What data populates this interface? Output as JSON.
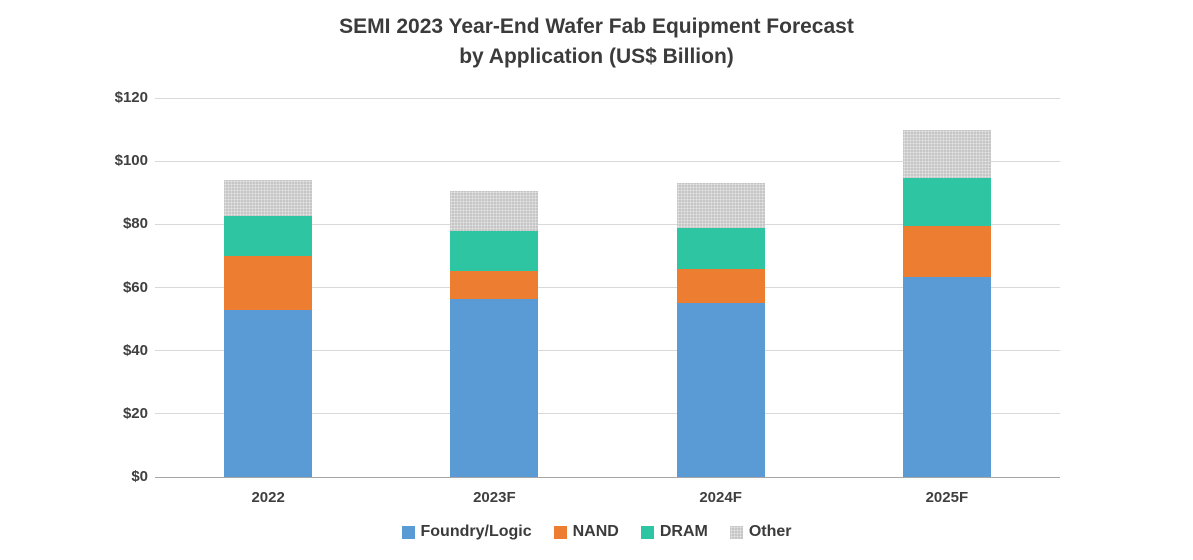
{
  "chart_data": {
    "type": "bar",
    "stacked": true,
    "title_line1": "SEMI 2023 Year-End Wafer Fab Equipment Forecast",
    "title_line2": "by Application (US$ Billion)",
    "categories": [
      "2022",
      "2023F",
      "2024F",
      "2025F"
    ],
    "series": [
      {
        "name": "Foundry/Logic",
        "color": "#5B9BD5",
        "textured": false,
        "values": [
          53.0,
          56.3,
          55.2,
          63.3
        ]
      },
      {
        "name": "NAND",
        "color": "#ED7D31",
        "textured": false,
        "values": [
          17.0,
          8.8,
          10.7,
          16.2
        ]
      },
      {
        "name": "DRAM",
        "color": "#2DC5A2",
        "textured": false,
        "values": [
          12.5,
          12.7,
          13.0,
          15.2
        ]
      },
      {
        "name": "Other",
        "color": "#C6C6C6",
        "textured": true,
        "values": [
          11.5,
          12.8,
          14.1,
          15.3
        ]
      }
    ],
    "totals": [
      94.0,
      90.6,
      93.0,
      110.0
    ],
    "ylim": [
      0,
      120
    ],
    "y_tick_step": 20,
    "y_tick_labels": [
      "$0",
      "$20",
      "$40",
      "$60",
      "$80",
      "$100",
      "$120"
    ],
    "grid": true,
    "legend_position": "bottom"
  }
}
